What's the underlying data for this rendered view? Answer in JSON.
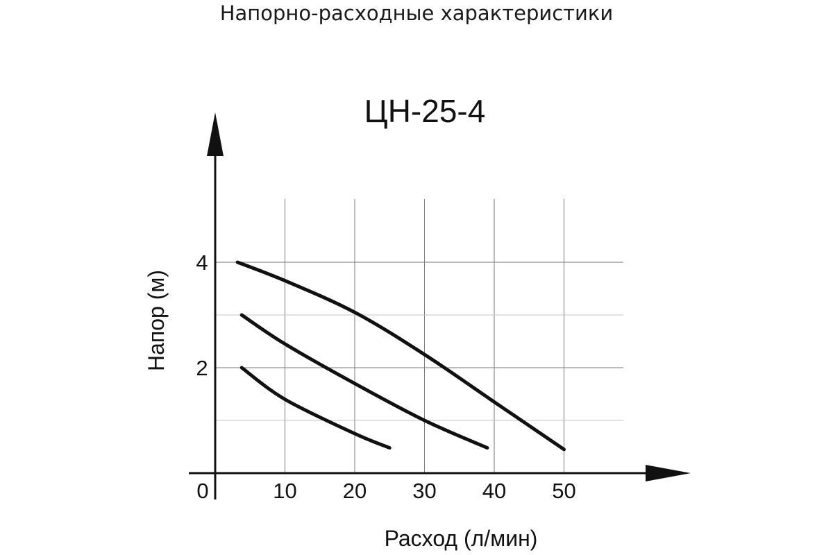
{
  "page": {
    "title": "Напорно-расходные характеристики"
  },
  "chart_data": {
    "type": "line",
    "title": "ЦН-25-4",
    "xlabel": "Расход (л/мин)",
    "ylabel": "Напор (м)",
    "xlim": [
      0,
      50
    ],
    "ylim": [
      0,
      5
    ],
    "x_ticks": [
      {
        "value": 0,
        "label": "0"
      },
      {
        "value": 10,
        "label": "10"
      },
      {
        "value": 20,
        "label": "20"
      },
      {
        "value": 30,
        "label": "30"
      },
      {
        "value": 40,
        "label": "40"
      },
      {
        "value": 50,
        "label": "50"
      }
    ],
    "y_ticks": [
      {
        "value": 2,
        "label": "2"
      },
      {
        "value": 4,
        "label": "4"
      }
    ],
    "grid": true,
    "series": [
      {
        "points": [
          [
            3.2,
            4.0
          ],
          [
            10,
            3.65
          ],
          [
            20,
            3.05
          ],
          [
            30,
            2.25
          ],
          [
            40,
            1.35
          ],
          [
            50,
            0.45
          ]
        ]
      },
      {
        "points": [
          [
            3.8,
            3.0
          ],
          [
            10,
            2.45
          ],
          [
            20,
            1.7
          ],
          [
            30,
            1.0
          ],
          [
            39,
            0.48
          ]
        ]
      },
      {
        "points": [
          [
            3.8,
            2.0
          ],
          [
            10,
            1.4
          ],
          [
            20,
            0.75
          ],
          [
            25,
            0.48
          ]
        ]
      }
    ]
  }
}
